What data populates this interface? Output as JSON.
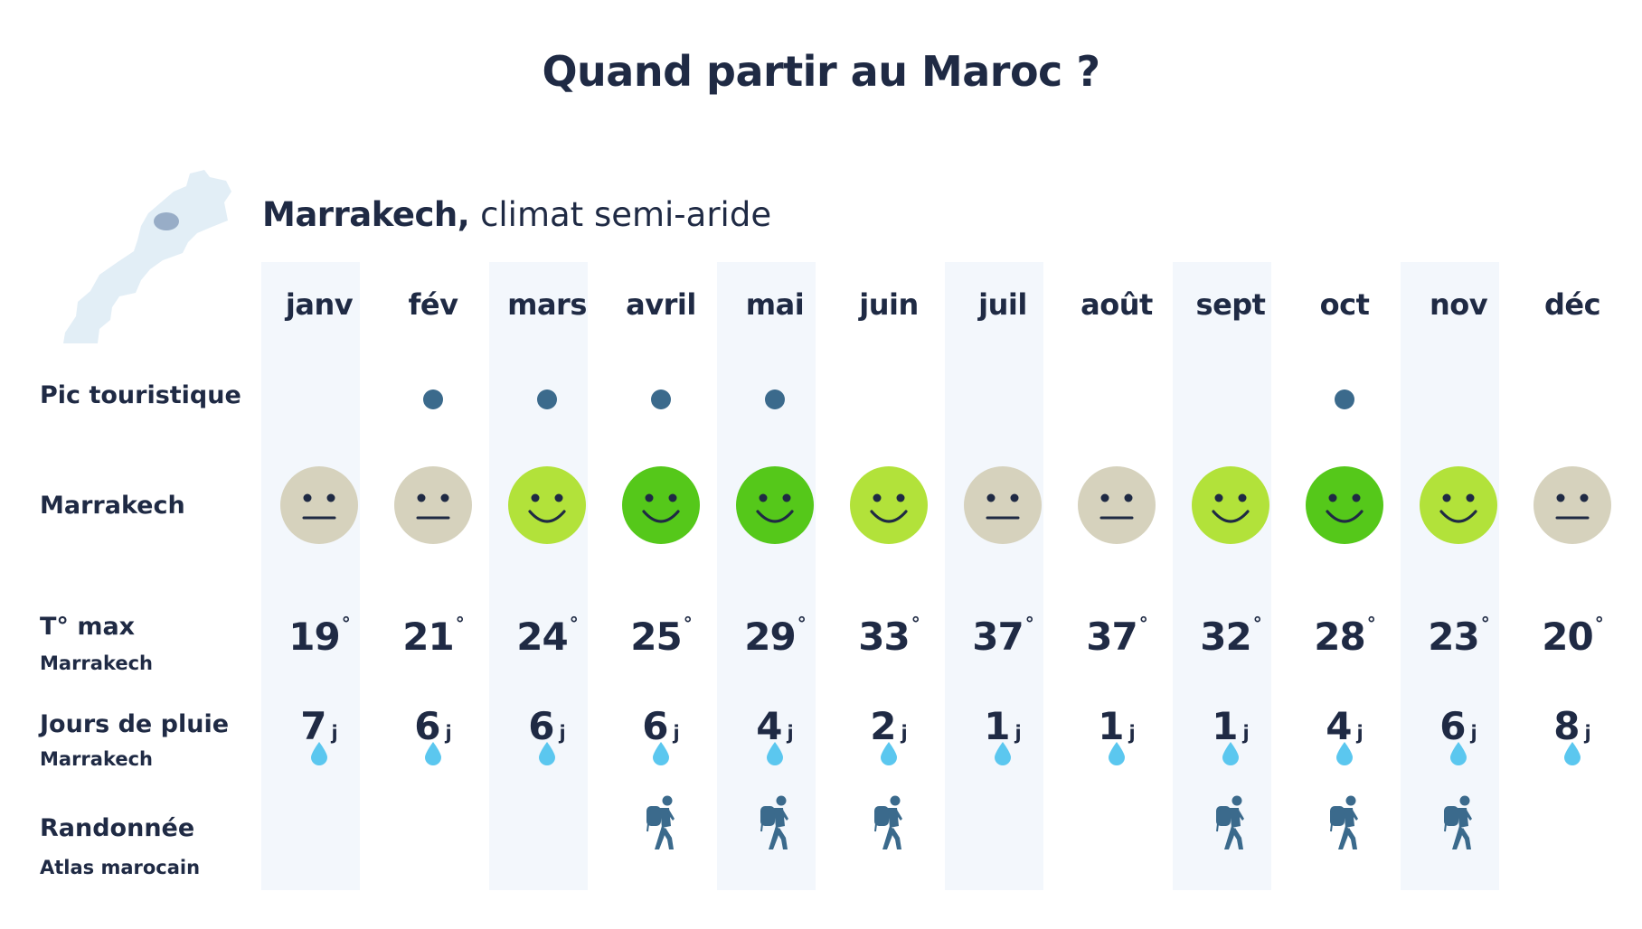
{
  "title": "Quand partir au Maroc ?",
  "city": {
    "name": "Marrakech,",
    "climate": "climat semi-aride"
  },
  "colors": {
    "text": "#1f2a44",
    "column_highlight": "#f3f7fc",
    "peak_dot": "#3b6a8c",
    "rating_neutral": "#d6d2bd",
    "rating_good": "#b2e23a",
    "rating_great": "#55c81a",
    "rain_drop": "#5bc7ef",
    "hiker": "#3b6a8c",
    "map_fill": "#e2eef6",
    "map_highlight": "#98adc7"
  },
  "row_labels": {
    "peak": "Pic touristique",
    "rating": "Marrakech",
    "temp": "T° max",
    "temp_sub": "Marrakech",
    "rain": "Jours de pluie",
    "rain_sub": "Marrakech",
    "hike": "Randonnée",
    "hike_sub": "Atlas marocain"
  },
  "temp_unit": "°",
  "rain_unit": "j",
  "icons": {
    "map": "morocco-map-icon",
    "rating": "smiley-face-icon",
    "rain": "water-drop-icon",
    "hike": "hiker-icon",
    "peak": "dot-icon"
  },
  "chart_data": {
    "type": "table",
    "months": [
      "janv",
      "fév",
      "mars",
      "avril",
      "mai",
      "juin",
      "juil",
      "août",
      "sept",
      "oct",
      "nov",
      "déc"
    ],
    "peak_season": [
      false,
      true,
      true,
      true,
      true,
      false,
      false,
      false,
      false,
      true,
      false,
      false
    ],
    "rating": [
      "neutral",
      "neutral",
      "good",
      "great",
      "great",
      "good",
      "neutral",
      "neutral",
      "good",
      "great",
      "good",
      "neutral"
    ],
    "temp_max": [
      19,
      21,
      24,
      25,
      29,
      33,
      37,
      37,
      32,
      28,
      23,
      20
    ],
    "rain_days": [
      7,
      6,
      6,
      6,
      4,
      2,
      1,
      1,
      1,
      4,
      6,
      8
    ],
    "hiking": [
      false,
      false,
      false,
      true,
      true,
      true,
      false,
      false,
      true,
      true,
      true,
      false
    ]
  }
}
